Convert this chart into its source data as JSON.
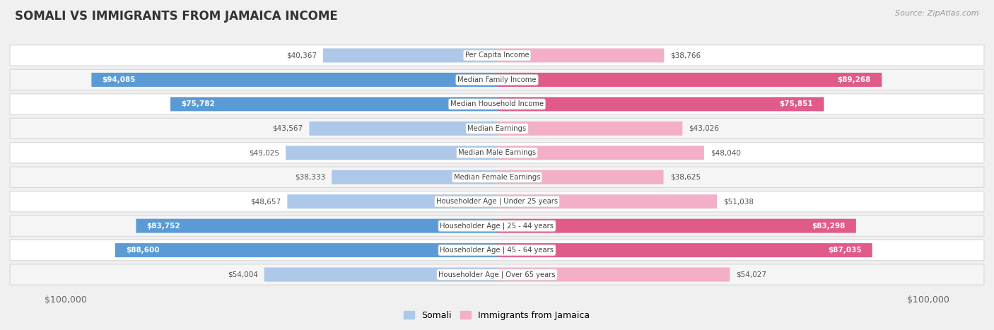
{
  "title": "SOMALI VS IMMIGRANTS FROM JAMAICA INCOME",
  "source": "Source: ZipAtlas.com",
  "categories": [
    "Per Capita Income",
    "Median Family Income",
    "Median Household Income",
    "Median Earnings",
    "Median Male Earnings",
    "Median Female Earnings",
    "Householder Age | Under 25 years",
    "Householder Age | 25 - 44 years",
    "Householder Age | 45 - 64 years",
    "Householder Age | Over 65 years"
  ],
  "somali_values": [
    40367,
    94085,
    75782,
    43567,
    49025,
    38333,
    48657,
    83752,
    88600,
    54004
  ],
  "jamaica_values": [
    38766,
    89268,
    75851,
    43026,
    48040,
    38625,
    51038,
    83298,
    87035,
    54027
  ],
  "max_value": 100000,
  "somali_light_color": "#adc8e8",
  "somali_dark_color": "#5b9bd5",
  "jamaica_light_color": "#f4afc8",
  "jamaica_dark_color": "#e05a8a",
  "bg_color": "#f0f0f0",
  "row_bg_even": "#ffffff",
  "row_bg_odd": "#f5f5f5",
  "row_border_color": "#d8d8d8",
  "bar_height": 0.58,
  "legend_somali_label": "Somali",
  "legend_jamaica_label": "Immigrants from Jamaica"
}
